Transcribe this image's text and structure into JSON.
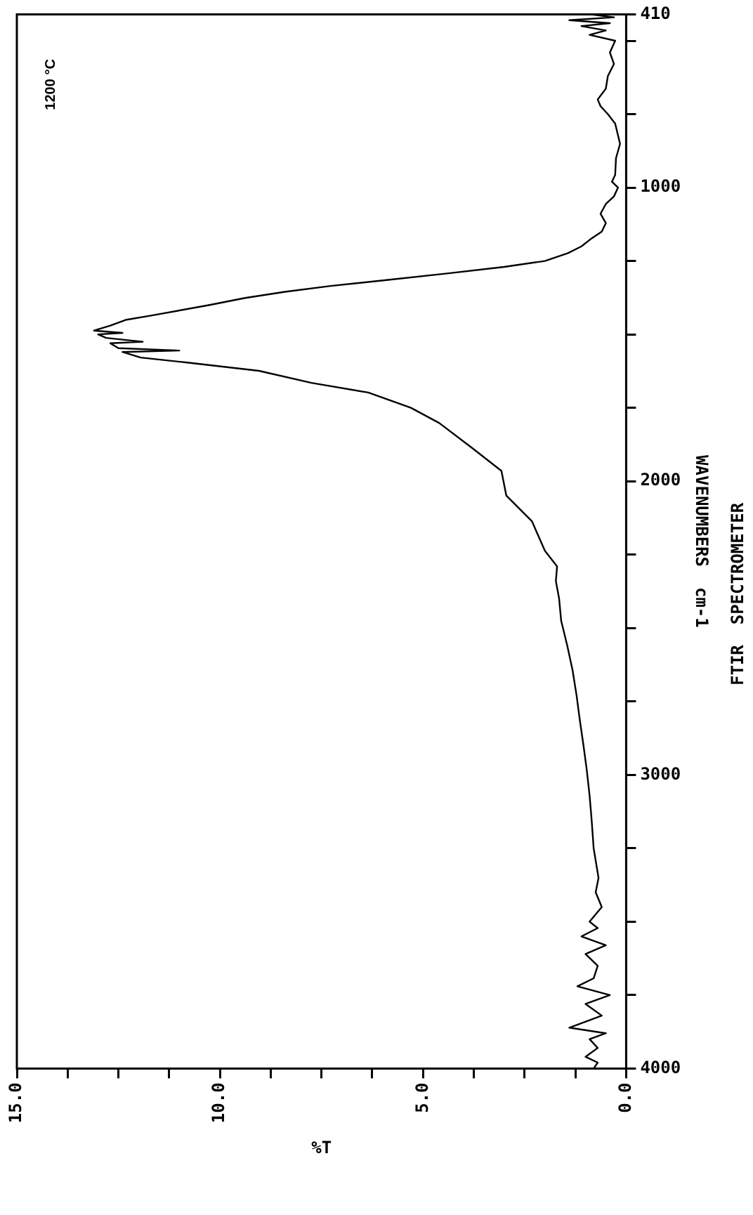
{
  "chart_data": {
    "type": "line",
    "xlabel": "%T",
    "ylabel": "WAVENUMBERS  cm-1",
    "annotations": [
      "1200 °C",
      "FTIR  SPECTROMETER"
    ],
    "values": [
      410,
      420,
      430,
      440,
      450,
      465,
      480,
      500,
      540,
      579,
      620,
      663,
      700,
      723,
      750,
      782,
      851,
      900,
      957,
      980,
      1000,
      1030,
      1056,
      1089,
      1121,
      1150,
      1173,
      1200,
      1223,
      1250,
      1270,
      1292,
      1315,
      1335,
      1355,
      1376,
      1401,
      1436,
      1450,
      1470,
      1487,
      1495,
      1500,
      1512,
      1525,
      1530,
      1547,
      1555,
      1560,
      1579,
      1596,
      1624,
      1665,
      1698,
      1750,
      1802,
      1886,
      1965,
      2049,
      2136,
      2237,
      2290,
      2340,
      2400,
      2475,
      2560,
      2643,
      2730,
      2814,
      2900,
      2983,
      3070,
      3153,
      3250,
      3351,
      3400,
      3450,
      3500,
      3522,
      3550,
      3580,
      3610,
      3650,
      3693,
      3720,
      3750,
      3780,
      3820,
      3861,
      3880,
      3900,
      3930,
      3960,
      3980,
      4000
    ],
    "x": [
      0.9,
      0.3,
      1.4,
      0.4,
      1.1,
      0.5,
      0.9,
      0.27,
      0.4,
      0.3,
      0.45,
      0.5,
      0.7,
      0.63,
      0.45,
      0.27,
      0.15,
      0.25,
      0.27,
      0.35,
      0.2,
      0.3,
      0.5,
      0.63,
      0.5,
      0.6,
      0.85,
      1.1,
      1.43,
      2.0,
      3.0,
      4.37,
      5.9,
      7.27,
      8.4,
      9.38,
      10.3,
      11.7,
      12.3,
      12.7,
      13.1,
      12.4,
      13.0,
      12.8,
      11.9,
      12.7,
      12.5,
      11.0,
      12.4,
      11.95,
      10.8,
      9.04,
      7.75,
      6.35,
      5.3,
      4.6,
      3.8,
      3.07,
      2.95,
      2.32,
      2.0,
      1.7,
      1.73,
      1.65,
      1.6,
      1.45,
      1.32,
      1.22,
      1.14,
      1.05,
      0.97,
      0.9,
      0.85,
      0.8,
      0.68,
      0.75,
      0.6,
      0.9,
      0.7,
      1.1,
      0.5,
      1.0,
      0.7,
      0.8,
      1.2,
      0.4,
      1.0,
      0.6,
      1.4,
      0.5,
      0.9,
      0.7,
      1.0,
      0.7,
      0.8
    ],
    "color": "#000000",
    "marker": "none",
    "line_style": "solid",
    "grid": false,
    "legend": false,
    "ylim": [
      4000,
      410
    ],
    "yticks": [
      4000,
      {
        "value": 3750,
        "label": null
      },
      {
        "value": 3500,
        "label": null
      },
      {
        "value": 3250,
        "label": null
      },
      3000,
      {
        "value": 2750,
        "label": null
      },
      {
        "value": 2500,
        "label": null
      },
      {
        "value": 2250,
        "label": null
      },
      2000,
      {
        "value": 1750,
        "label": null
      },
      {
        "value": 1500,
        "label": null
      },
      {
        "value": 1250,
        "label": null
      },
      1000,
      {
        "value": 750,
        "label": null
      },
      {
        "value": 500,
        "label": null
      },
      410
    ],
    "xlim": [
      15,
      0
    ],
    "xticks": [
      {
        "value": 0,
        "label": "0.0"
      },
      {
        "value": 1.25,
        "label": null
      },
      {
        "value": 2.5,
        "label": null
      },
      {
        "value": 3.75,
        "label": null
      },
      {
        "value": 5,
        "label": "5.0"
      },
      {
        "value": 6.25,
        "label": null
      },
      {
        "value": 7.5,
        "label": null
      },
      {
        "value": 8.75,
        "label": null
      },
      {
        "value": 10,
        "label": "10.0"
      },
      {
        "value": 11.25,
        "label": null
      },
      {
        "value": 12.5,
        "label": null
      },
      {
        "value": 13.75,
        "label": null
      },
      {
        "value": 15,
        "label": "15.0"
      }
    ]
  }
}
